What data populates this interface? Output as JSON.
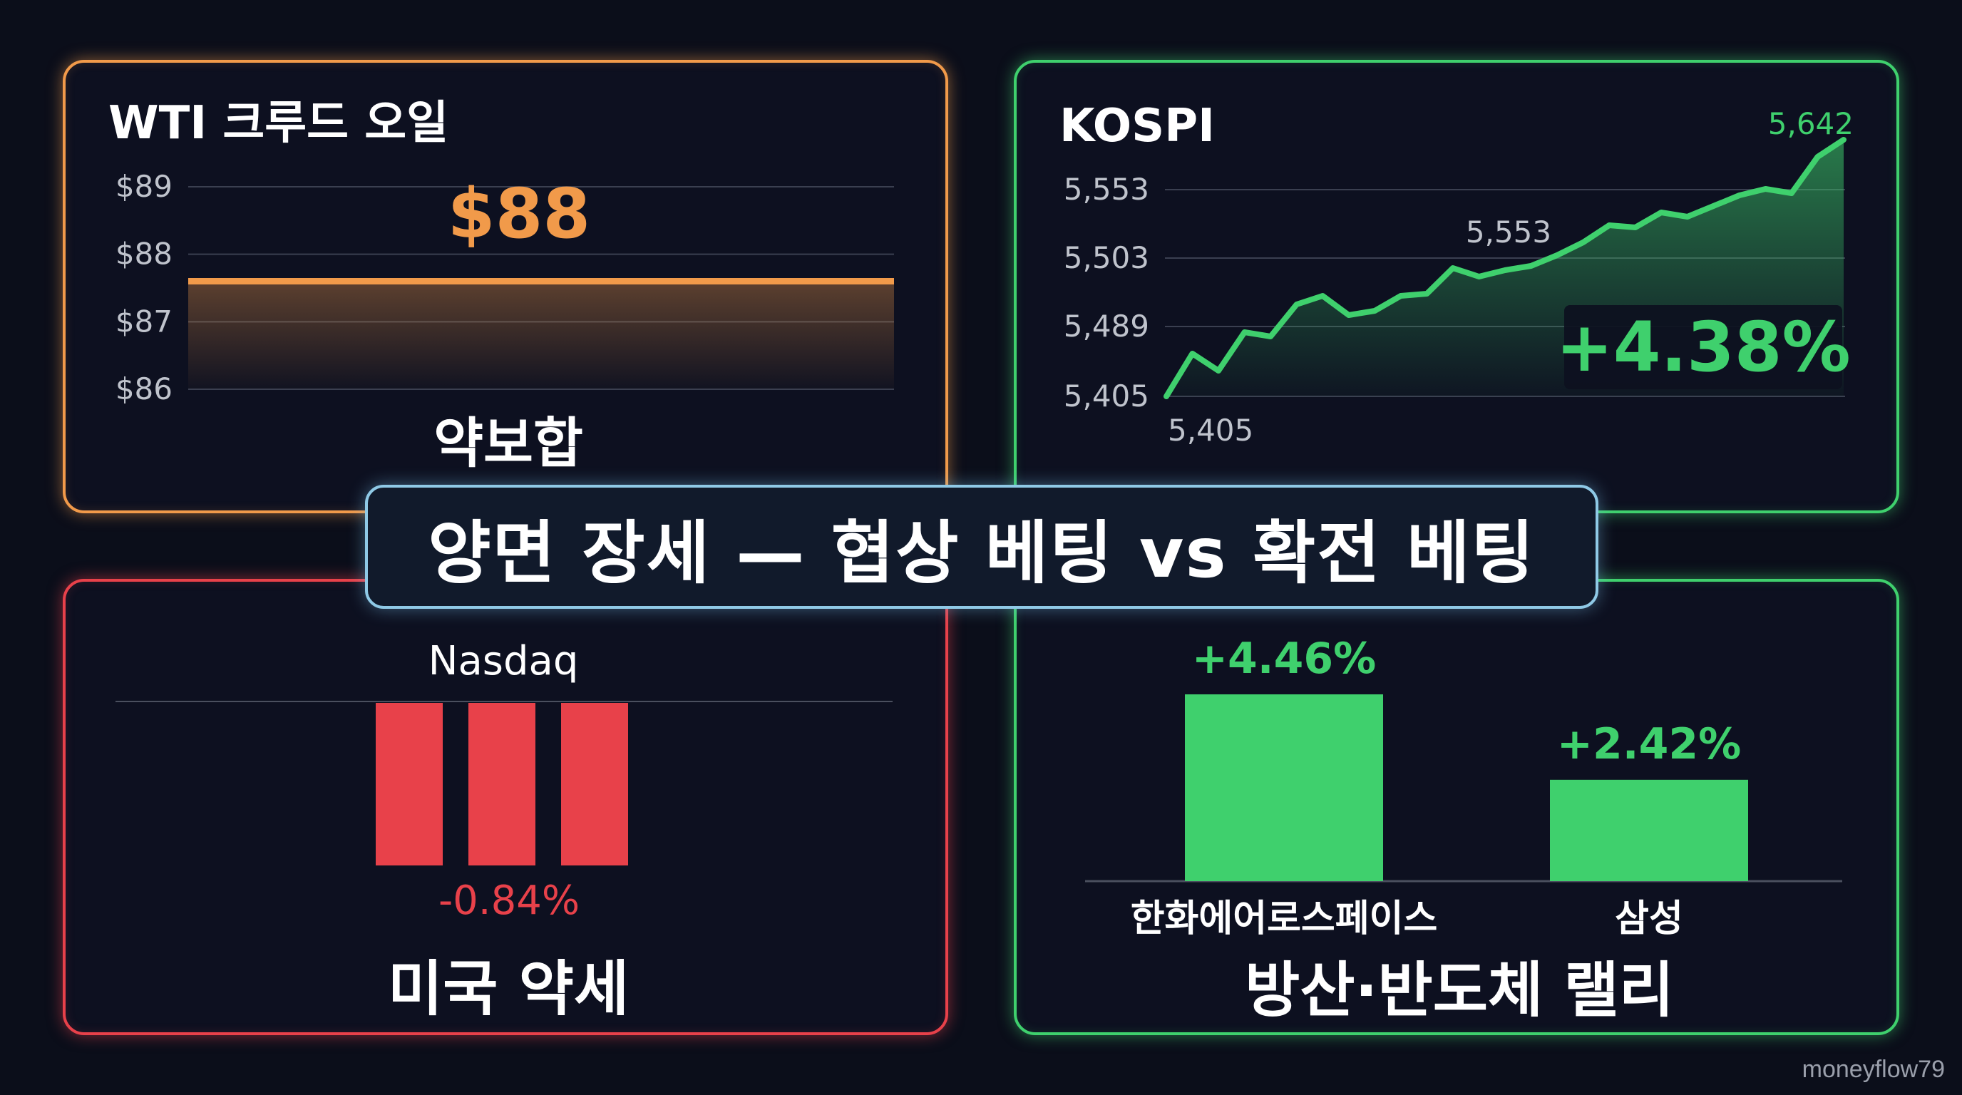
{
  "banner": {
    "text": "양면 장세 — 협상 베팅 vs 확전 베팅"
  },
  "watermark": "moneyflow79",
  "colors": {
    "orange": "#f19a4a",
    "green": "#3fd06d",
    "red": "#e8414a",
    "blue": "#8fc9e6",
    "background": "#0b0e1a"
  },
  "chart_data": [
    {
      "id": "wti",
      "type": "line",
      "title": "WTI 크루드 오일",
      "yticks": [
        "$89",
        "$88",
        "$87",
        "$86"
      ],
      "ylim": [
        86,
        89
      ],
      "value": 87.6,
      "value_label": "$88",
      "caption": "약보합",
      "grid": true
    },
    {
      "id": "kospi",
      "type": "area",
      "title": "KOSPI",
      "yticks": [
        "5,553",
        "5,503",
        "5,489",
        "5,405"
      ],
      "values": [
        0,
        0.2,
        0.12,
        0.3,
        0.28,
        0.43,
        0.47,
        0.38,
        0.4,
        0.47,
        0.48,
        0.6,
        0.56,
        0.59,
        0.61,
        0.66,
        0.72,
        0.8,
        0.79,
        0.86,
        0.84,
        0.89,
        0.94,
        0.97,
        0.95,
        1.12,
        1.2
      ],
      "start_label": "5,405",
      "mid_label": "5,553",
      "end_label": "5,642",
      "change_label": "+4.38%",
      "grid": true
    },
    {
      "id": "nasdaq",
      "type": "bar",
      "title": "Nasdaq",
      "bars": 3,
      "value": -0.84,
      "value_label": "-0.84%",
      "caption": "미국 약세"
    },
    {
      "id": "sector",
      "type": "bar",
      "categories": [
        "한화에어로스페이스",
        "삼성"
      ],
      "values": [
        4.46,
        2.42
      ],
      "value_labels": [
        "+4.46%",
        "+2.42%"
      ],
      "ylim": [
        0,
        4.8
      ],
      "caption": "방산·반도체 랠리"
    }
  ]
}
